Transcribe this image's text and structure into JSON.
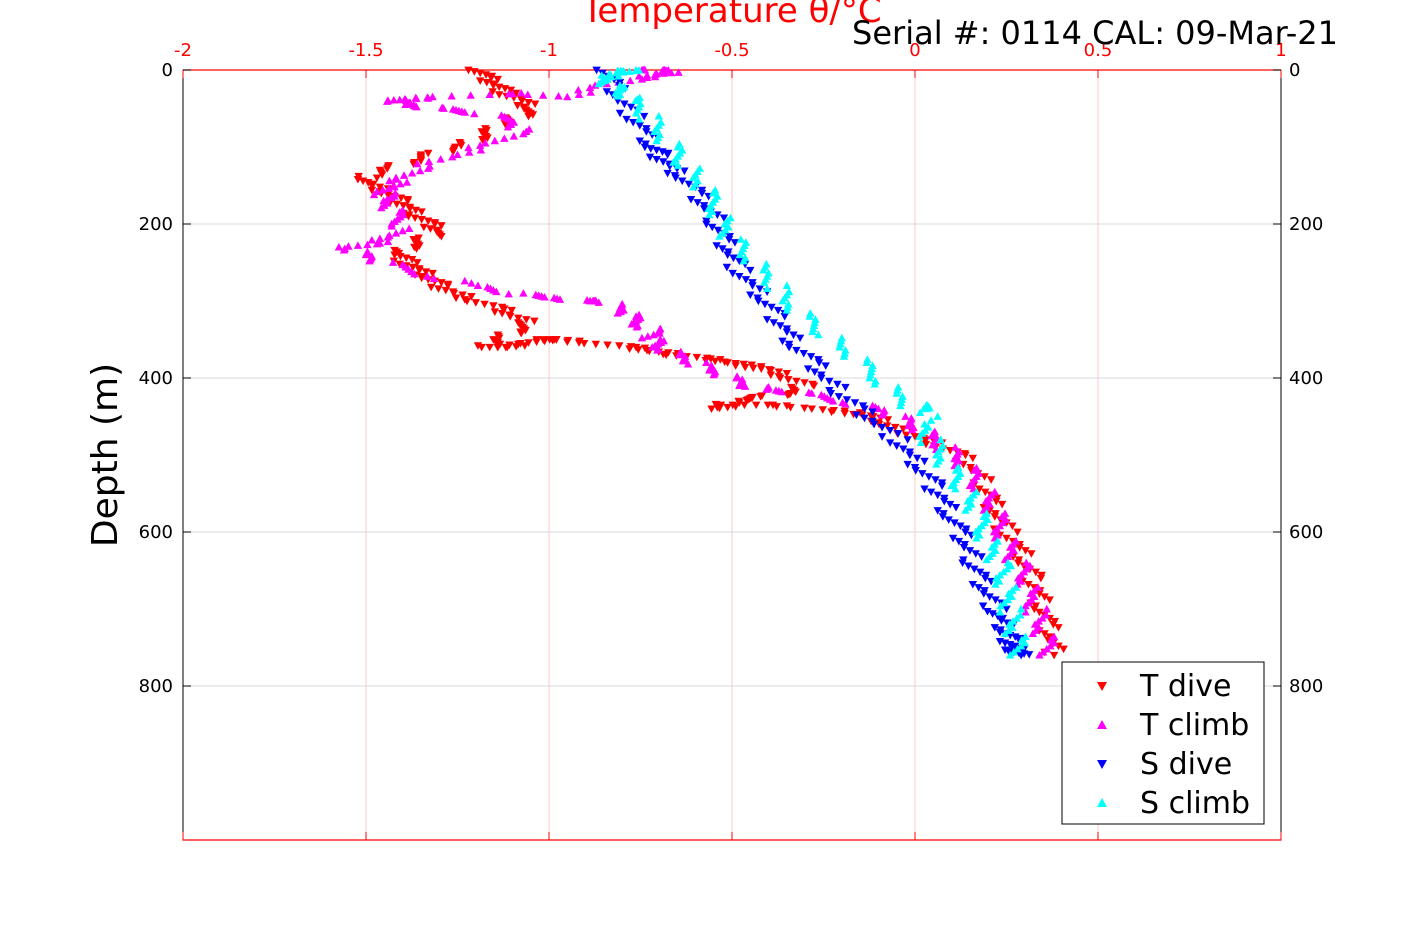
{
  "chart_data": {
    "type": "scatter",
    "title": "Temperature θ/°C",
    "annotation": "Serial #: 0114  CAL: 09-Mar-21",
    "ylabel": "Depth (m)",
    "xlabel": "",
    "xlim": [
      -2,
      1
    ],
    "ylim": [
      0,
      1000
    ],
    "y_reversed": true,
    "x_axis_position": "top",
    "grid": true,
    "legend_position": "bottom-right",
    "x_ticks": [
      {
        "value": -2,
        "label": "-2"
      },
      {
        "value": -1.5,
        "label": "-1.5"
      },
      {
        "value": -1,
        "label": "-1"
      },
      {
        "value": -0.5,
        "label": "-0.5"
      },
      {
        "value": 0,
        "label": "0"
      },
      {
        "value": 0.5,
        "label": "0.5"
      },
      {
        "value": 1,
        "label": "1"
      }
    ],
    "y_ticks": [
      {
        "value": 0,
        "label": "0"
      },
      {
        "value": 200,
        "label": "200"
      },
      {
        "value": 400,
        "label": "400"
      },
      {
        "value": 600,
        "label": "600"
      },
      {
        "value": 800,
        "label": "800"
      }
    ],
    "colors": {
      "axis_x": "#ff0000",
      "grid_x": "#ffc8c8",
      "grid_y": "#d9d9d9"
    },
    "series": [
      {
        "name": "T dive",
        "color": "#ff0000",
        "marker": "triangle-down",
        "x": [
          -1.19,
          -1.17,
          -1.14,
          -1.12,
          -1.08,
          -1.05,
          -1.08,
          -1.12,
          -1.16,
          -1.2,
          -1.25,
          -1.32,
          -1.38,
          -1.45,
          -1.5,
          -1.49,
          -1.44,
          -1.41,
          -1.38,
          -1.36,
          -1.33,
          -1.3,
          -1.34,
          -1.38,
          -1.41,
          -1.39,
          -1.36,
          -1.33,
          -1.3,
          -1.26,
          -1.2,
          -1.14,
          -1.1,
          -1.05,
          -1.09,
          -1.14,
          -1.17,
          -1.12,
          -1.06,
          -1.01,
          -0.98,
          -0.88,
          -0.78,
          -0.72,
          -0.65,
          -0.57,
          -0.5,
          -0.45,
          -0.4,
          -0.35,
          -0.3,
          -0.34,
          -0.42,
          -0.5,
          -0.55,
          -0.5,
          -0.4,
          -0.27,
          -0.18,
          -0.12,
          -0.08,
          -0.03,
          0.03,
          0.08,
          0.12,
          0.16,
          0.19,
          0.21,
          0.23,
          0.25,
          0.28,
          0.3,
          0.32,
          0.34,
          0.35,
          0.36,
          0.37,
          0.38
        ],
        "y": [
          0,
          10,
          20,
          30,
          40,
          50,
          60,
          70,
          80,
          90,
          100,
          110,
          120,
          130,
          140,
          150,
          160,
          170,
          180,
          190,
          200,
          210,
          220,
          230,
          240,
          250,
          260,
          270,
          280,
          290,
          300,
          310,
          320,
          330,
          340,
          350,
          360,
          360,
          355,
          350,
          350,
          355,
          360,
          365,
          370,
          375,
          380,
          385,
          390,
          400,
          410,
          420,
          425,
          430,
          440,
          435,
          435,
          440,
          445,
          450,
          460,
          470,
          480,
          490,
          500,
          520,
          540,
          560,
          580,
          600,
          620,
          640,
          660,
          680,
          700,
          720,
          740,
          760
        ]
      },
      {
        "name": "T climb",
        "color": "#ff00ff",
        "marker": "triangle-up",
        "x": [
          0.37,
          0.36,
          0.34,
          0.33,
          0.31,
          0.3,
          0.28,
          0.26,
          0.24,
          0.22,
          0.2,
          0.18,
          0.15,
          0.12,
          0.08,
          0.04,
          0,
          -0.05,
          -0.1,
          -0.2,
          -0.3,
          -0.4,
          -0.45,
          -0.5,
          -0.55,
          -0.6,
          -0.65,
          -0.7,
          -0.72,
          -0.7,
          -0.75,
          -0.78,
          -0.8,
          -0.85,
          -0.9,
          -1.0,
          -1.1,
          -1.2,
          -1.35,
          -1.45,
          -1.5,
          -1.55,
          -1.48,
          -1.43,
          -1.4,
          -1.42,
          -1.44,
          -1.45,
          -1.43,
          -1.4,
          -1.35,
          -1.25,
          -1.15,
          -1.08,
          -1.1,
          -1.2,
          -1.3,
          -1.38,
          -1.42,
          -1.4,
          -1.3,
          -1.1,
          -0.95,
          -0.85,
          -0.75,
          -0.7,
          -0.66,
          -0.7,
          -0.74
        ],
        "y": [
          760,
          740,
          720,
          700,
          680,
          660,
          640,
          620,
          600,
          580,
          560,
          540,
          520,
          505,
          490,
          475,
          462,
          450,
          440,
          430,
          420,
          415,
          410,
          400,
          390,
          380,
          370,
          360,
          350,
          340,
          330,
          320,
          310,
          300,
          300,
          295,
          290,
          280,
          265,
          250,
          240,
          230,
          225,
          215,
          200,
          185,
          170,
          160,
          150,
          140,
          125,
          110,
          95,
          80,
          65,
          55,
          50,
          45,
          40,
          38,
          35,
          30,
          35,
          20,
          10,
          5,
          2,
          0,
          0
        ]
      },
      {
        "name": "S dive",
        "color": "#0000ff",
        "marker": "triangle-down",
        "x": [
          -0.84,
          -0.82,
          -0.8,
          -0.77,
          -0.74,
          -0.72,
          -0.7,
          -0.67,
          -0.63,
          -0.6,
          -0.57,
          -0.54,
          -0.52,
          -0.5,
          -0.48,
          -0.45,
          -0.41,
          -0.38,
          -0.35,
          -0.32,
          -0.28,
          -0.25,
          -0.2,
          -0.15,
          -0.1,
          -0.05,
          -0.02,
          0.02,
          0.05,
          0.08,
          0.1,
          0.12,
          0.14,
          0.16,
          0.18,
          0.2,
          0.22,
          0.23,
          0.25,
          0.26,
          0.27,
          0.28,
          0.29
        ],
        "y": [
          0,
          20,
          40,
          60,
          80,
          100,
          110,
          125,
          140,
          160,
          180,
          200,
          220,
          240,
          260,
          280,
          300,
          320,
          340,
          360,
          380,
          400,
          420,
          440,
          460,
          480,
          500,
          520,
          540,
          560,
          580,
          600,
          620,
          640,
          660,
          680,
          700,
          715,
          730,
          740,
          750,
          755,
          760
        ]
      },
      {
        "name": "S climb",
        "color": "#00ffff",
        "marker": "triangle-up",
        "x": [
          0.29,
          0.28,
          0.27,
          0.26,
          0.25,
          0.24,
          0.23,
          0.21,
          0.19,
          0.17,
          0.15,
          0.13,
          0.1,
          0.07,
          0.04,
          0.02,
          0.05,
          0.0,
          -0.05,
          -0.1,
          -0.15,
          -0.2,
          -0.25,
          -0.3,
          -0.35,
          -0.38,
          -0.42,
          -0.46,
          -0.5,
          -0.52,
          -0.54,
          -0.57,
          -0.6,
          -0.63,
          -0.66,
          -0.7,
          -0.73,
          -0.77,
          -0.8,
          -0.83,
          -0.85,
          -0.81,
          -0.78,
          -0.8
        ],
        "y": [
          760,
          740,
          720,
          700,
          680,
          660,
          640,
          620,
          600,
          580,
          560,
          540,
          520,
          500,
          480,
          460,
          435,
          440,
          420,
          400,
          380,
          360,
          340,
          320,
          300,
          280,
          260,
          240,
          220,
          200,
          180,
          160,
          140,
          120,
          100,
          80,
          60,
          40,
          30,
          20,
          10,
          5,
          0,
          2
        ]
      }
    ]
  }
}
